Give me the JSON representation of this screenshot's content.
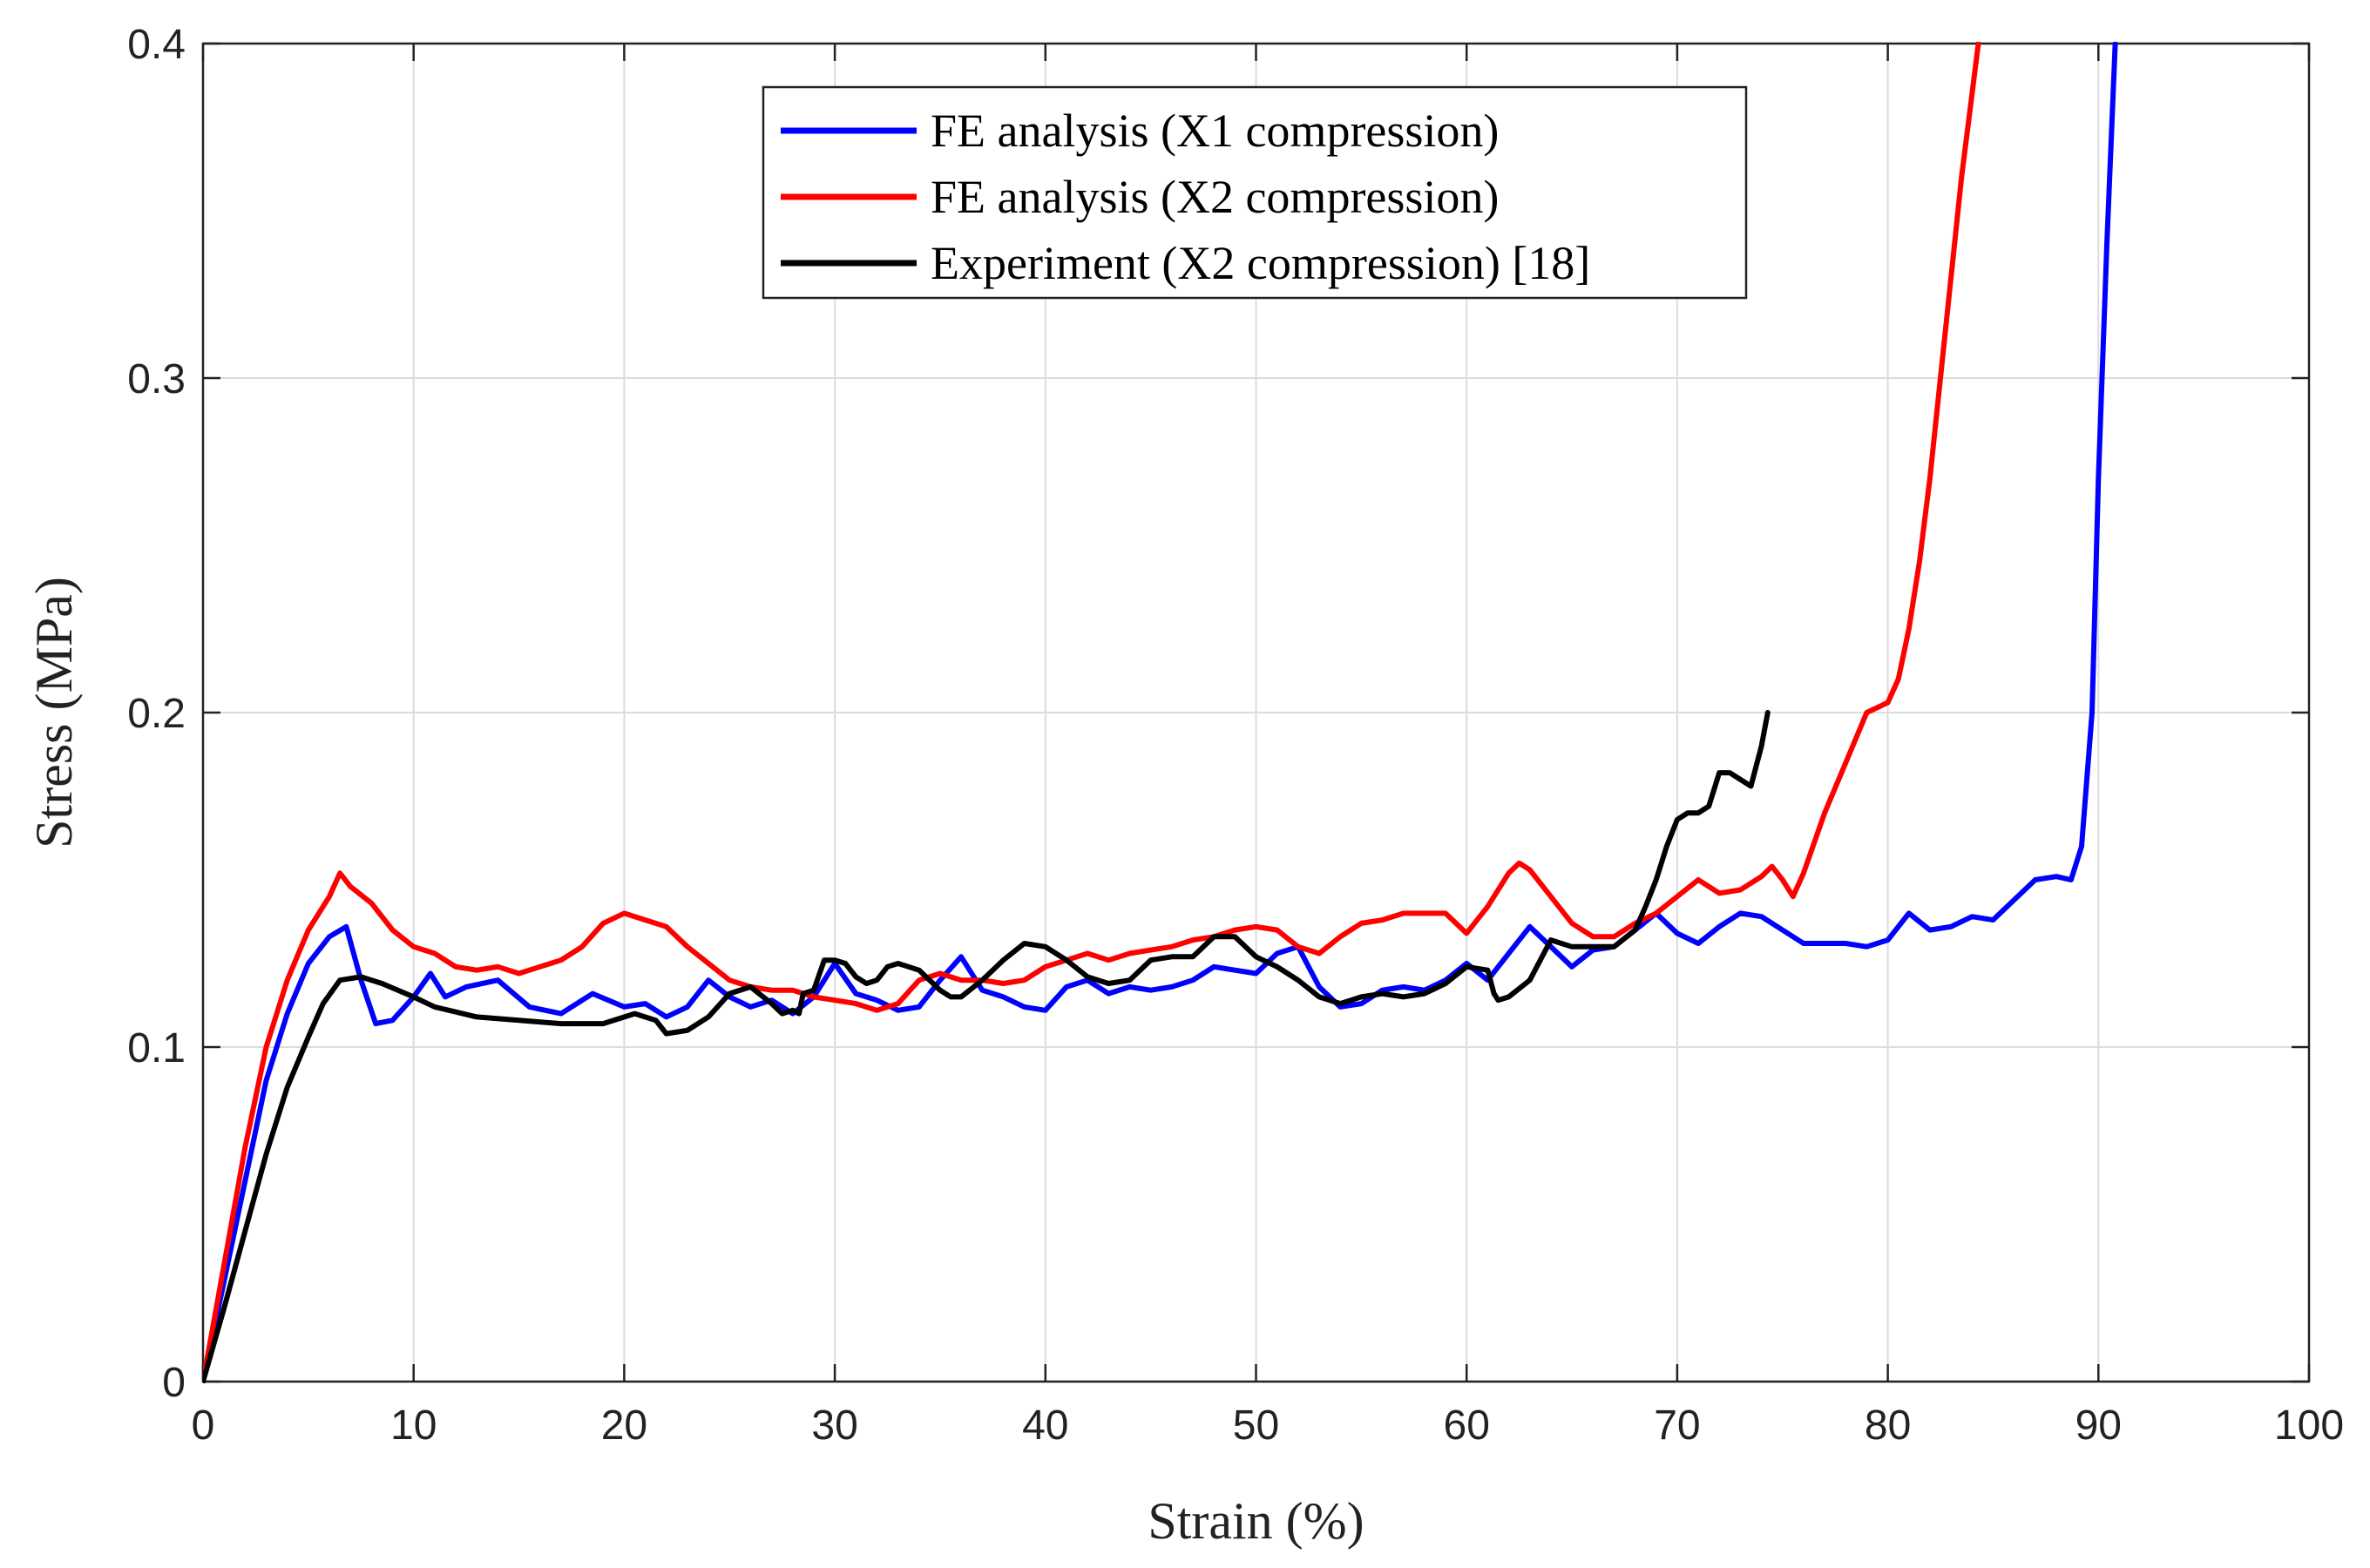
{
  "chart_data": {
    "type": "line",
    "title": "",
    "xlabel": "Strain (%)",
    "ylabel": "Stress (MPa)",
    "xlim": [
      0,
      100
    ],
    "ylim": [
      0,
      0.4
    ],
    "xticks": [
      0,
      10,
      20,
      30,
      40,
      50,
      60,
      70,
      80,
      90,
      100
    ],
    "xtick_labels": [
      "0",
      "10",
      "20",
      "30",
      "40",
      "50",
      "60",
      "70",
      "80",
      "90",
      "100"
    ],
    "yticks": [
      0,
      0.1,
      0.2,
      0.3,
      0.4
    ],
    "ytick_labels": [
      "0",
      "0.1",
      "0.2",
      "0.3",
      "0.4"
    ],
    "grid": true,
    "legend_position": "top-center",
    "series": [
      {
        "name": "FE analysis (X1 compression)",
        "color": "#0000ff",
        "x": [
          0,
          1,
          2,
          3,
          4,
          5,
          6,
          6.8,
          7.5,
          8.2,
          9,
          10,
          10.8,
          11.5,
          12.5,
          14,
          15.5,
          17,
          18.5,
          20,
          21,
          22,
          23,
          24,
          25,
          26,
          27,
          28,
          29,
          30,
          31,
          32,
          33,
          34,
          35,
          36,
          37,
          38,
          39,
          40,
          41,
          42,
          43,
          44,
          45,
          46,
          47,
          48,
          49,
          50,
          51,
          52,
          53,
          54,
          55,
          56,
          57,
          58,
          59,
          60,
          61,
          62,
          63,
          64,
          65,
          66,
          67,
          68,
          69,
          70,
          71,
          72,
          73,
          74,
          75,
          76,
          77,
          78,
          79,
          80,
          81,
          82,
          83,
          84,
          85,
          86,
          87,
          88,
          88.7,
          89.2,
          89.7,
          90,
          90.4,
          90.8
        ],
        "y": [
          0,
          0.03,
          0.06,
          0.09,
          0.11,
          0.125,
          0.133,
          0.136,
          0.12,
          0.107,
          0.108,
          0.115,
          0.122,
          0.115,
          0.118,
          0.12,
          0.112,
          0.11,
          0.116,
          0.112,
          0.113,
          0.109,
          0.112,
          0.12,
          0.115,
          0.112,
          0.114,
          0.11,
          0.115,
          0.125,
          0.116,
          0.114,
          0.111,
          0.112,
          0.12,
          0.127,
          0.117,
          0.115,
          0.112,
          0.111,
          0.118,
          0.12,
          0.116,
          0.118,
          0.117,
          0.118,
          0.12,
          0.124,
          0.123,
          0.122,
          0.128,
          0.13,
          0.118,
          0.112,
          0.113,
          0.117,
          0.118,
          0.117,
          0.12,
          0.125,
          0.12,
          0.128,
          0.136,
          0.13,
          0.124,
          0.129,
          0.13,
          0.135,
          0.14,
          0.134,
          0.131,
          0.136,
          0.14,
          0.139,
          0.135,
          0.131,
          0.131,
          0.131,
          0.13,
          0.132,
          0.14,
          0.135,
          0.136,
          0.139,
          0.138,
          0.144,
          0.15,
          0.151,
          0.15,
          0.16,
          0.2,
          0.27,
          0.34,
          0.4
        ]
      },
      {
        "name": "FE analysis (X2 compression)",
        "color": "#ff0000",
        "x": [
          0,
          1,
          2,
          3,
          4,
          5,
          6,
          6.5,
          7,
          8,
          9,
          10,
          11,
          12,
          13,
          14,
          15,
          16,
          17,
          18,
          19,
          20,
          21,
          22,
          23,
          24,
          25,
          26,
          27,
          28,
          29,
          30,
          31,
          32,
          33,
          34,
          35,
          36,
          37,
          38,
          39,
          40,
          41,
          42,
          43,
          44,
          45,
          46,
          47,
          48,
          49,
          50,
          51,
          52,
          53,
          54,
          55,
          56,
          57,
          58,
          59,
          60,
          61,
          62,
          62.5,
          63,
          64,
          65,
          66,
          67,
          68,
          69,
          70,
          71,
          72,
          73,
          74,
          74.5,
          75,
          75.5,
          76,
          77,
          78,
          79,
          80,
          80.5,
          81,
          81.5,
          82,
          82.5,
          83,
          83.5,
          84,
          84.3
        ],
        "y": [
          0,
          0.035,
          0.07,
          0.1,
          0.12,
          0.135,
          0.145,
          0.152,
          0.148,
          0.143,
          0.135,
          0.13,
          0.128,
          0.124,
          0.123,
          0.124,
          0.122,
          0.124,
          0.126,
          0.13,
          0.137,
          0.14,
          0.138,
          0.136,
          0.13,
          0.125,
          0.12,
          0.118,
          0.117,
          0.117,
          0.115,
          0.114,
          0.113,
          0.111,
          0.113,
          0.12,
          0.122,
          0.12,
          0.12,
          0.119,
          0.12,
          0.124,
          0.126,
          0.128,
          0.126,
          0.128,
          0.129,
          0.13,
          0.132,
          0.133,
          0.135,
          0.136,
          0.135,
          0.13,
          0.128,
          0.133,
          0.137,
          0.138,
          0.14,
          0.14,
          0.14,
          0.134,
          0.142,
          0.152,
          0.155,
          0.153,
          0.145,
          0.137,
          0.133,
          0.133,
          0.137,
          0.14,
          0.145,
          0.15,
          0.146,
          0.147,
          0.151,
          0.154,
          0.15,
          0.145,
          0.152,
          0.17,
          0.185,
          0.2,
          0.203,
          0.21,
          0.225,
          0.245,
          0.27,
          0.3,
          0.33,
          0.36,
          0.385,
          0.4
        ]
      },
      {
        "name": "Experiment (X2 compression) [18]",
        "color": "#000000",
        "x": [
          0,
          1,
          2,
          3,
          4,
          5,
          5.7,
          6.5,
          7.5,
          8.5,
          10,
          11,
          13,
          15,
          17,
          19,
          20.5,
          21.5,
          22,
          23,
          24,
          25,
          26,
          27,
          27.5,
          28,
          28.3,
          28.5,
          29,
          29.5,
          30,
          30.5,
          31,
          31.5,
          32,
          32.5,
          33,
          33.5,
          34,
          34.5,
          35,
          35.5,
          36,
          37,
          38,
          39,
          40,
          41,
          42,
          43,
          44,
          45,
          46,
          47,
          48,
          49,
          50,
          51,
          52,
          53,
          54,
          55,
          56,
          57,
          58,
          59,
          60,
          61,
          61.3,
          61.5,
          62,
          63,
          64,
          65,
          66,
          67,
          68,
          68.5,
          69,
          69.5,
          70,
          70.5,
          71,
          71.5,
          72,
          72.5,
          73,
          73.5,
          74,
          74.3
        ],
        "y": [
          0,
          0.022,
          0.045,
          0.068,
          0.088,
          0.103,
          0.113,
          0.12,
          0.121,
          0.119,
          0.115,
          0.112,
          0.109,
          0.108,
          0.107,
          0.107,
          0.11,
          0.108,
          0.104,
          0.105,
          0.109,
          0.116,
          0.118,
          0.113,
          0.11,
          0.111,
          0.11,
          0.116,
          0.117,
          0.126,
          0.126,
          0.125,
          0.121,
          0.119,
          0.12,
          0.124,
          0.125,
          0.124,
          0.123,
          0.12,
          0.117,
          0.115,
          0.115,
          0.12,
          0.126,
          0.131,
          0.13,
          0.126,
          0.121,
          0.119,
          0.12,
          0.126,
          0.127,
          0.127,
          0.133,
          0.133,
          0.127,
          0.124,
          0.12,
          0.115,
          0.113,
          0.115,
          0.116,
          0.115,
          0.116,
          0.119,
          0.124,
          0.123,
          0.116,
          0.114,
          0.115,
          0.12,
          0.132,
          0.13,
          0.13,
          0.13,
          0.135,
          0.142,
          0.15,
          0.16,
          0.168,
          0.17,
          0.17,
          0.172,
          0.182,
          0.182,
          0.18,
          0.178,
          0.19,
          0.2
        ]
      }
    ]
  }
}
